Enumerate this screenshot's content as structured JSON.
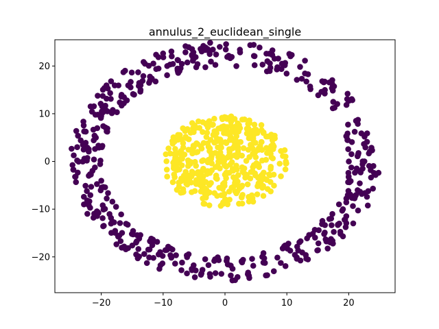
{
  "chart_data": {
    "type": "scatter",
    "title": "annulus_2_euclidean_single",
    "xlabel": "",
    "ylabel": "",
    "xlim": [
      -27.5,
      27.5
    ],
    "ylim": [
      -27.5,
      25.5
    ],
    "xticks": [
      -20,
      -10,
      0,
      10,
      20
    ],
    "yticks": [
      -20,
      -10,
      0,
      10,
      20
    ],
    "grid": false,
    "series": [
      {
        "color": "#440154",
        "shape": "annulus",
        "center": [
          0,
          0
        ],
        "radius_range": [
          20,
          25
        ],
        "count": 520,
        "points": []
      },
      {
        "color": "#fde725",
        "shape": "ellipse",
        "center": [
          0,
          0
        ],
        "radius": [
          10,
          10
        ],
        "count": 430,
        "points": []
      }
    ]
  }
}
